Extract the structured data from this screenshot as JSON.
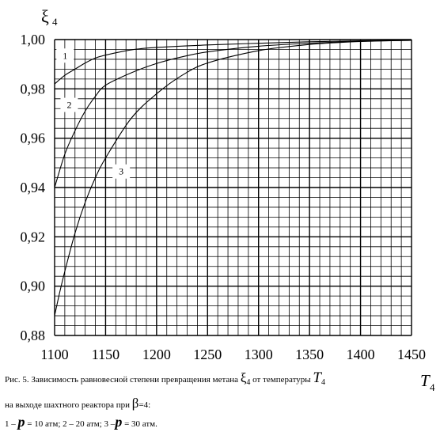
{
  "chart_data": {
    "type": "line",
    "ylabel": "ξ",
    "ylabel_sub": "4",
    "xlabel": "T",
    "xlabel_sub": "4",
    "xlim": [
      1100,
      1450
    ],
    "ylim": [
      0.88,
      1.0
    ],
    "x_ticks": [
      "1100",
      "1150",
      "1200",
      "1250",
      "1300",
      "1350",
      "1400",
      "1450"
    ],
    "y_ticks": [
      "1,00",
      "0,98",
      "0,96",
      "0,94",
      "0,92",
      "0,90",
      "0,88"
    ],
    "y_tick_values": [
      1.0,
      0.98,
      0.96,
      0.94,
      0.92,
      0.9,
      0.88
    ],
    "grid": true,
    "series": [
      {
        "name": "1",
        "label_at": [
          1108,
          0.9935
        ],
        "x": [
          1100,
          1110,
          1120,
          1130,
          1140,
          1150,
          1175,
          1200,
          1250,
          1300,
          1350,
          1400,
          1450
        ],
        "y": [
          0.982,
          0.9855,
          0.988,
          0.9905,
          0.9925,
          0.9937,
          0.9958,
          0.9968,
          0.9978,
          0.9985,
          0.9991,
          0.9995,
          0.9998
        ]
      },
      {
        "name": "2",
        "label_at": [
          1112,
          0.9735
        ],
        "x": [
          1100,
          1110,
          1120,
          1130,
          1140,
          1150,
          1175,
          1200,
          1225,
          1250,
          1300,
          1350,
          1400,
          1450
        ],
        "y": [
          0.94,
          0.9535,
          0.963,
          0.971,
          0.977,
          0.9815,
          0.9865,
          0.9903,
          0.993,
          0.995,
          0.9973,
          0.9985,
          0.9993,
          0.9997
        ]
      },
      {
        "name": "3",
        "label_at": [
          1163,
          0.9465
        ],
        "x": [
          1100,
          1105,
          1110,
          1120,
          1130,
          1140,
          1150,
          1175,
          1200,
          1225,
          1250,
          1300,
          1350,
          1400,
          1450
        ],
        "y": [
          0.888,
          0.8975,
          0.906,
          0.9215,
          0.934,
          0.944,
          0.952,
          0.968,
          0.978,
          0.9855,
          0.9905,
          0.9955,
          0.998,
          0.9992,
          0.9997
        ]
      }
    ]
  },
  "caption": {
    "line1_prefix": "Рис. 5. Зависимость равновесной степени превращения метана ",
    "xi_symbol": "ξ",
    "xi_sub": "4",
    "line1_middle": " от температуры ",
    "t_symbol": "T",
    "t_sub": "4",
    "line2_prefix": "на выходе шахтного реактора при ",
    "beta_symbol": "β",
    "line2_suffix": "=4:",
    "line3_part1": "1 – ",
    "p_symbol": "p",
    "line3_part2": " = 10 атм; 2 – 20 атм; 3 –",
    "line3_part3": " = 30 атм."
  }
}
